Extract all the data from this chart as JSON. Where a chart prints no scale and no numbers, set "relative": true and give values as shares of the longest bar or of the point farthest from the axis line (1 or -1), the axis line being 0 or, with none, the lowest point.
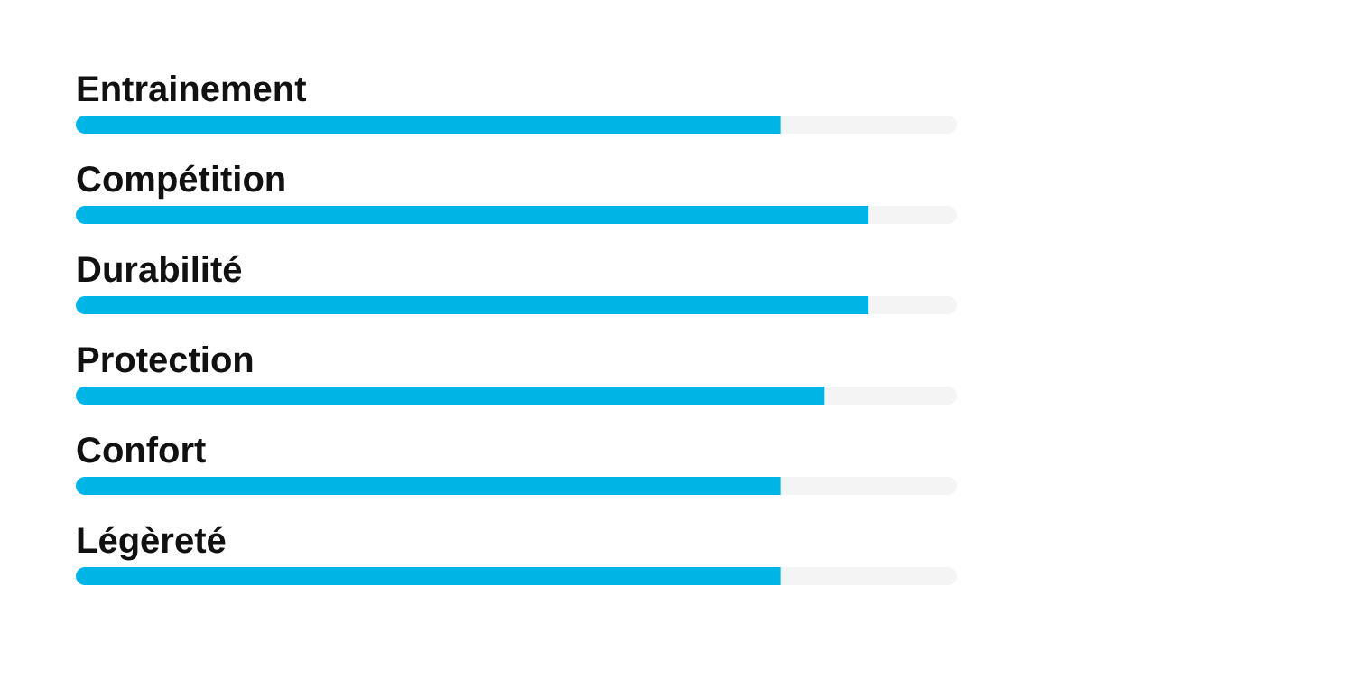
{
  "chart_data": {
    "type": "bar",
    "orientation": "horizontal",
    "stacked": true,
    "relative": true,
    "legend": false,
    "categories": [
      "Entrainement",
      "Compétition",
      "Durabilité",
      "Protection",
      "Confort",
      "Légèreté"
    ],
    "series": [
      {
        "color": "#00b5e6",
        "values": [
          0.8,
          0.9,
          0.9,
          0.85,
          0.8,
          0.8
        ]
      },
      {
        "color": "#f4f4f4",
        "values": [
          0.2,
          0.1,
          0.1,
          0.15,
          0.2,
          0.2
        ]
      }
    ]
  }
}
